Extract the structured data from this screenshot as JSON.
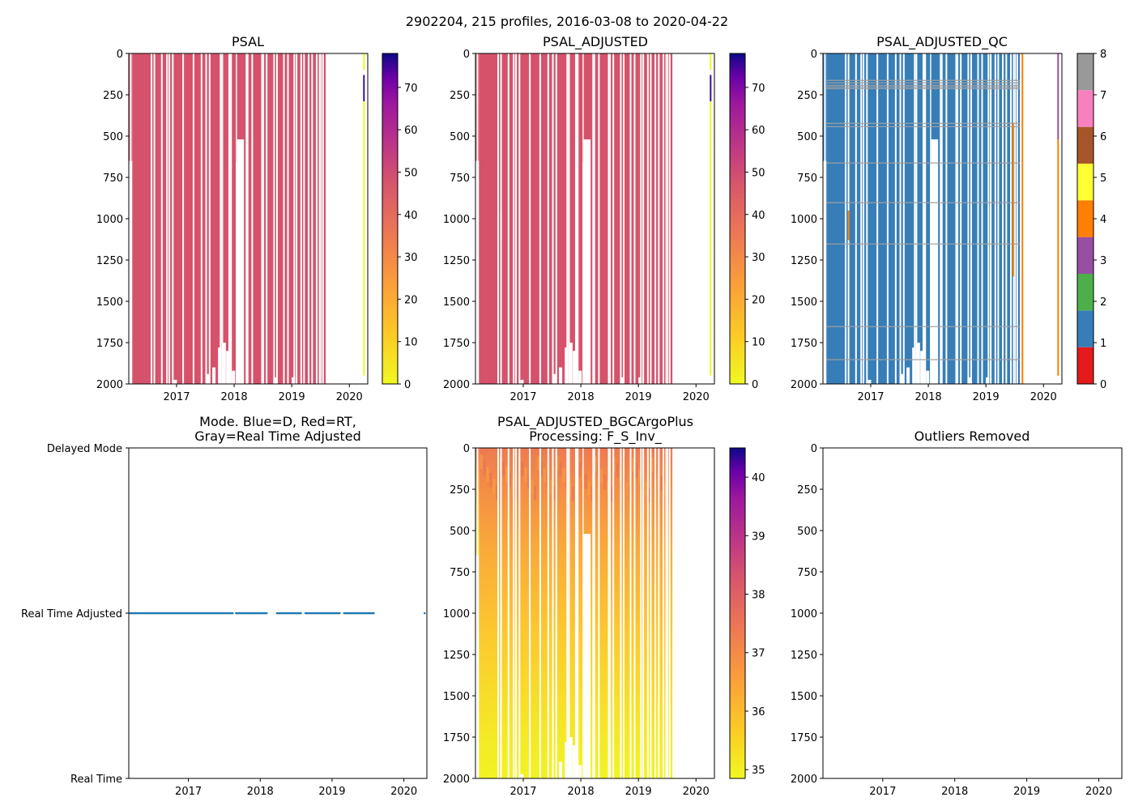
{
  "figure": {
    "suptitle": "2902204, 215 profiles, 2016-03-08 to 2020-04-22"
  },
  "colors": {
    "psal_fill": "#d6526b",
    "axis": "#000000",
    "mode_dots": "#1f77b4",
    "qc_gray": "#a0a0a0"
  },
  "chart_data": [
    {
      "id": "psal",
      "type": "heatmap",
      "title": "PSAL",
      "xlabel": "",
      "ylabel": "",
      "x_ticks": [
        "2017",
        "2018",
        "2019",
        "2020"
      ],
      "y_ticks": [
        "0",
        "250",
        "500",
        "750",
        "1000",
        "1250",
        "1500",
        "1750",
        "2000"
      ],
      "ylim": [
        2000,
        0
      ],
      "colorbar": {
        "ticks": [
          "0",
          "10",
          "20",
          "30",
          "40",
          "50",
          "60",
          "70"
        ],
        "range": [
          0,
          78
        ],
        "colormap": "plasma_r"
      },
      "dominant_value": 35
    },
    {
      "id": "psal_adjusted",
      "type": "heatmap",
      "title": "PSAL_ADJUSTED",
      "x_ticks": [
        "2017",
        "2018",
        "2019",
        "2020"
      ],
      "y_ticks": [
        "0",
        "250",
        "500",
        "750",
        "1000",
        "1250",
        "1500",
        "1750",
        "2000"
      ],
      "ylim": [
        2000,
        0
      ],
      "colorbar": {
        "ticks": [
          "0",
          "10",
          "20",
          "30",
          "40",
          "50",
          "60",
          "70"
        ],
        "range": [
          0,
          78
        ],
        "colormap": "plasma_r"
      },
      "dominant_value": 35
    },
    {
      "id": "psal_adjusted_qc",
      "type": "heatmap",
      "title": "PSAL_ADJUSTED_QC",
      "x_ticks": [
        "2017",
        "2018",
        "2019",
        "2020"
      ],
      "y_ticks": [
        "0",
        "250",
        "500",
        "750",
        "1000",
        "1250",
        "1500",
        "1750",
        "2000"
      ],
      "ylim": [
        2000,
        0
      ],
      "colorbar": {
        "ticks": [
          "0",
          "1",
          "2",
          "3",
          "4",
          "5",
          "6",
          "7",
          "8"
        ],
        "categories": [
          {
            "value": 0,
            "color": "#e41a1c"
          },
          {
            "value": 1,
            "color": "#377eb8"
          },
          {
            "value": 2,
            "color": "#4daf4a"
          },
          {
            "value": 3,
            "color": "#984ea3"
          },
          {
            "value": 4,
            "color": "#ff7f00"
          },
          {
            "value": 5,
            "color": "#ffff33"
          },
          {
            "value": 6,
            "color": "#a65628"
          },
          {
            "value": 7,
            "color": "#f781bf"
          },
          {
            "value": 8,
            "color": "#999999"
          }
        ]
      },
      "dominant_value": 1
    },
    {
      "id": "mode",
      "type": "scatter",
      "title_line1": "Mode. Blue=D, Red=RT,",
      "title_line2": "Gray=Real Time Adjusted",
      "x_ticks": [
        "2017",
        "2018",
        "2019",
        "2020"
      ],
      "y_ticks": [
        "Delayed Mode",
        "Real Time Adjusted",
        "Real Time"
      ],
      "points_level": "Real Time Adjusted",
      "point_count": 215
    },
    {
      "id": "bgcargoplus",
      "type": "heatmap",
      "title_line1": "PSAL_ADJUSTED_BGCArgoPlus",
      "title_line2": "Processing: F_S_Inv_",
      "x_ticks": [
        "2017",
        "2018",
        "2019",
        "2020"
      ],
      "y_ticks": [
        "0",
        "250",
        "500",
        "750",
        "1000",
        "1250",
        "1500",
        "1750",
        "2000"
      ],
      "ylim": [
        2000,
        0
      ],
      "colorbar": {
        "ticks": [
          "35",
          "36",
          "37",
          "38",
          "39",
          "40"
        ],
        "range": [
          34.85,
          40.5
        ],
        "colormap": "plasma_r"
      },
      "profile": [
        {
          "depth": 0,
          "value": 36.9
        },
        {
          "depth": 250,
          "value": 36.5
        },
        {
          "depth": 500,
          "value": 35.9
        },
        {
          "depth": 1000,
          "value": 35.5
        },
        {
          "depth": 1500,
          "value": 35.2
        },
        {
          "depth": 2000,
          "value": 35.0
        }
      ]
    },
    {
      "id": "outliers",
      "type": "scatter",
      "title": "Outliers Removed",
      "x_ticks": [
        "2017",
        "2018",
        "2019",
        "2020"
      ],
      "y_ticks": [
        "0",
        "250",
        "500",
        "750",
        "1000",
        "1250",
        "1500",
        "1750",
        "2000"
      ],
      "ylim": [
        2000,
        0
      ],
      "points": []
    }
  ]
}
